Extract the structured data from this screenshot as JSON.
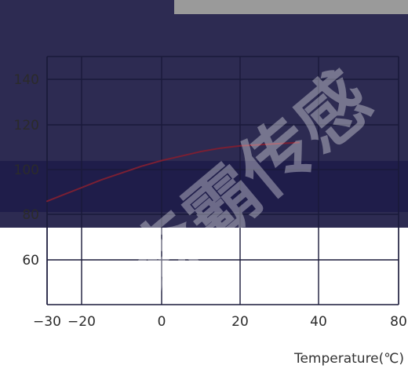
{
  "chart_data": {
    "type": "line",
    "xlabel": "Temperature(℃)",
    "ylabel": "",
    "x_ticks": [
      "−30",
      "−20",
      "0",
      "20",
      "40",
      "80"
    ],
    "y_ticks": [
      "60",
      "80",
      "100",
      "120",
      "140"
    ],
    "series": [
      {
        "x": [
          -30,
          -25,
          -20,
          -15,
          -10,
          -5,
          0,
          5,
          10,
          15,
          20,
          25,
          30,
          35
        ],
        "y": [
          86,
          89,
          92,
          95.5,
          98.5,
          101.5,
          104,
          106,
          108,
          109.5,
          110.5,
          111,
          111.5,
          112
        ]
      }
    ],
    "grid": true,
    "colors": {
      "line": "#7a1f33",
      "grid": "#1a1a3a",
      "dark_band": "#2a2a52",
      "darker_band": "#1e1e4a"
    }
  },
  "watermark": "森霸传感"
}
